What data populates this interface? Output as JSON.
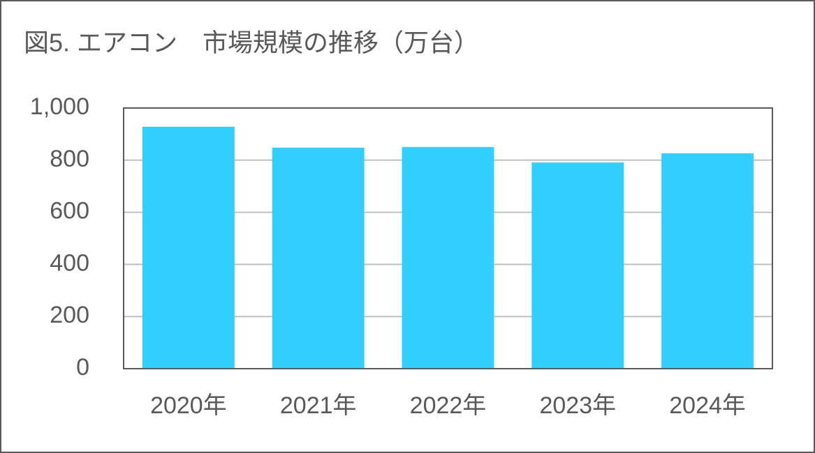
{
  "chart_data": {
    "type": "bar",
    "title": "図5. エアコン　市場規模の推移（万台）",
    "categories": [
      "2020年",
      "2021年",
      "2022年",
      "2023年",
      "2024年"
    ],
    "values": [
      928,
      848,
      850,
      791,
      826
    ],
    "color": "#31cffd",
    "ylim": [
      0,
      1000
    ],
    "yticks": [
      0,
      200,
      400,
      600,
      800,
      {
        "value": 1000,
        "label": "1,000"
      }
    ],
    "grid": true
  }
}
